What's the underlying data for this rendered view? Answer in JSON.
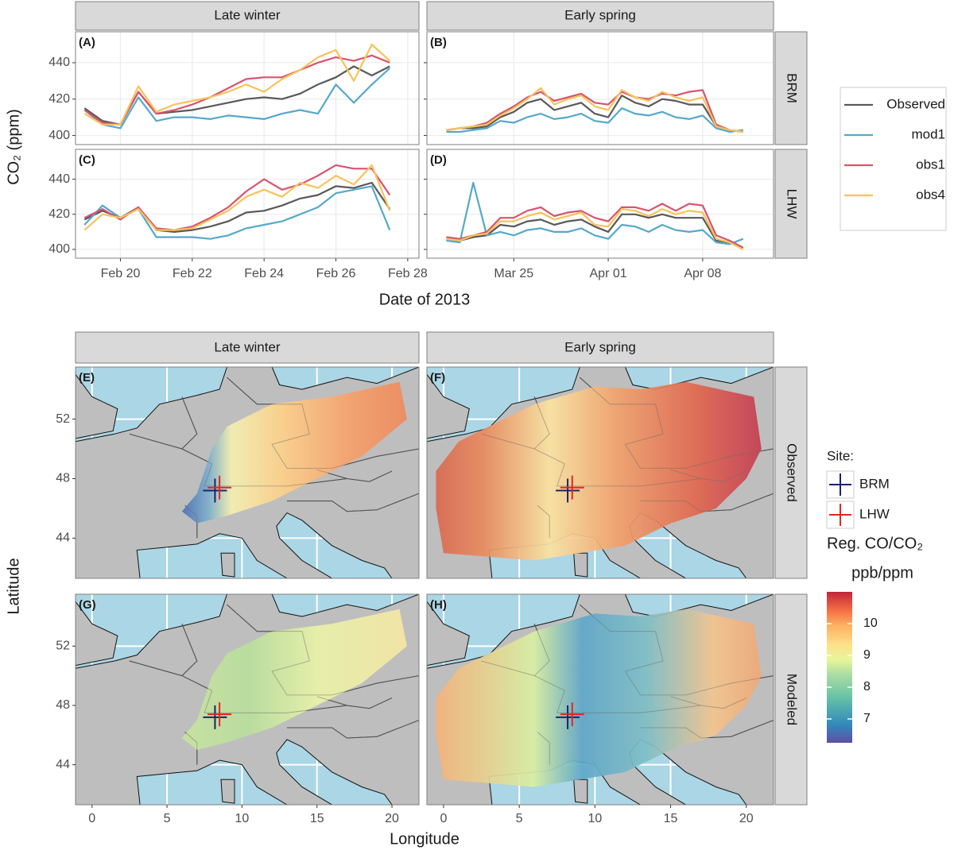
{
  "chart_data": [
    {
      "type": "line",
      "ylabel": "CO₂ (ppm)",
      "xlabel": "Date of 2013",
      "ylim": [
        395,
        457
      ],
      "yticks": [
        400,
        420,
        440
      ],
      "grid": true,
      "columns": [
        {
          "title": "Late winter",
          "xlim": [
            "2013-02-18T18:00",
            "2013-02-28T07:30"
          ],
          "xticks": [
            {
              "value": "2013-02-20T00:00",
              "label": "Feb 20"
            },
            {
              "value": "2013-02-22T00:00",
              "label": "Feb 22"
            },
            {
              "value": "2013-02-24T00:00",
              "label": "Feb 24"
            },
            {
              "value": "2013-02-26T00:00",
              "label": "Feb 26"
            },
            {
              "value": "2013-02-28T00:00",
              "label": "Feb 28"
            }
          ],
          "x": [
            "2013-02-19T00:00",
            "2013-02-19T12:00",
            "2013-02-20T00:00",
            "2013-02-20T12:00",
            "2013-02-21T00:00",
            "2013-02-21T12:00",
            "2013-02-22T00:00",
            "2013-02-22T12:00",
            "2013-02-23T00:00",
            "2013-02-23T12:00",
            "2013-02-24T00:00",
            "2013-02-24T12:00",
            "2013-02-25T00:00",
            "2013-02-25T12:00",
            "2013-02-26T00:00",
            "2013-02-26T12:00",
            "2013-02-27T00:00",
            "2013-02-27T12:00"
          ]
        },
        {
          "title": "Early spring",
          "xlim": [
            "2013-03-18T13:30",
            "2013-04-13T06:00"
          ],
          "xticks": [
            {
              "value": "2013-03-25T00:00",
              "label": "Mar 25"
            },
            {
              "value": "2013-04-01T00:00",
              "label": "Apr 01"
            },
            {
              "value": "2013-04-08T00:00",
              "label": "Apr 08"
            }
          ],
          "x": [
            "2013-03-20T00:00",
            "2013-03-21T00:00",
            "2013-03-22T00:00",
            "2013-03-23T00:00",
            "2013-03-24T00:00",
            "2013-03-25T00:00",
            "2013-03-26T00:00",
            "2013-03-27T00:00",
            "2013-03-28T00:00",
            "2013-03-29T00:00",
            "2013-03-30T00:00",
            "2013-03-31T00:00",
            "2013-04-01T00:00",
            "2013-04-02T00:00",
            "2013-04-03T00:00",
            "2013-04-04T00:00",
            "2013-04-05T00:00",
            "2013-04-06T00:00",
            "2013-04-07T00:00",
            "2013-04-08T00:00",
            "2013-04-09T00:00",
            "2013-04-10T00:00",
            "2013-04-11T00:00"
          ]
        }
      ],
      "rows": [
        "BRM",
        "LHW"
      ],
      "series": [
        {
          "name": "Observed",
          "color": "#595959"
        },
        {
          "name": "mod1",
          "color": "#56a8cb"
        },
        {
          "name": "obs1",
          "color": "#d9536d"
        },
        {
          "name": "obs4",
          "color": "#f7c35a"
        }
      ],
      "panels": [
        {
          "label": "(A)",
          "values": [
            [
              415,
              408,
              406,
              424,
              412,
              413,
              414,
              416,
              418,
              420,
              421,
              420,
              423,
              428,
              432,
              438,
              433,
              438
            ],
            [
              414,
              406,
              404,
              421,
              408,
              410,
              410,
              409,
              411,
              410,
              409,
              412,
              414,
              412,
              428,
              418,
              428,
              437
            ],
            [
              414,
              407,
              406,
              424,
              412,
              414,
              417,
              421,
              426,
              431,
              432,
              432,
              436,
              440,
              443,
              441,
              444,
              440
            ],
            [
              412,
              406,
              406,
              427,
              413,
              417,
              419,
              421,
              424,
              428,
              424,
              431,
              436,
              443,
              447,
              430,
              450,
              441
            ]
          ]
        },
        {
          "label": "(B)",
          "values": [
            [
              403,
              404,
              404,
              405,
              410,
              413,
              418,
              420,
              414,
              416,
              418,
              412,
              410,
              422,
              418,
              416,
              420,
              419,
              417,
              417,
              405,
              403,
              402
            ],
            [
              402,
              402,
              403,
              404,
              408,
              407,
              410,
              412,
              409,
              410,
              412,
              408,
              407,
              415,
              412,
              411,
              413,
              410,
              409,
              411,
              404,
              402,
              403
            ],
            [
              403,
              404,
              405,
              407,
              412,
              416,
              421,
              424,
              419,
              421,
              423,
              418,
              417,
              424,
              421,
              420,
              423,
              422,
              424,
              425,
              406,
              403,
              402
            ],
            [
              403,
              404,
              405,
              406,
              411,
              415,
              420,
              426,
              417,
              420,
              422,
              416,
              414,
              425,
              421,
              419,
              424,
              421,
              419,
              421,
              405,
              403,
              402
            ]
          ]
        },
        {
          "label": "(C)",
          "values": [
            [
              417,
              422,
              418,
              424,
              411,
              410,
              411,
              413,
              416,
              421,
              422,
              425,
              429,
              431,
              436,
              435,
              438,
              423
            ],
            [
              414,
              425,
              418,
              423,
              407,
              407,
              407,
              406,
              408,
              412,
              414,
              416,
              420,
              424,
              432,
              434,
              436,
              411
            ],
            [
              418,
              423,
              417,
              424,
              412,
              411,
              413,
              418,
              424,
              433,
              440,
              434,
              437,
              442,
              448,
              446,
              446,
              431
            ],
            [
              411,
              420,
              418,
              423,
              411,
              411,
              412,
              417,
              422,
              430,
              434,
              430,
              438,
              435,
              442,
              437,
              448,
              422
            ]
          ]
        },
        {
          "label": "(D)",
          "values": [
            [
              406,
              405,
              407,
              408,
              414,
              413,
              416,
              417,
              414,
              416,
              417,
              413,
              410,
              420,
              420,
              418,
              420,
              418,
              418,
              418,
              405,
              404,
              401
            ],
            [
              405,
              404,
              438,
              408,
              410,
              408,
              411,
              412,
              410,
              410,
              412,
              408,
              406,
              414,
              413,
              410,
              414,
              411,
              410,
              411,
              404,
              403,
              406
            ],
            [
              407,
              406,
              408,
              410,
              418,
              418,
              422,
              424,
              419,
              421,
              422,
              418,
              416,
              424,
              424,
              422,
              426,
              422,
              426,
              425,
              408,
              405,
              401
            ],
            [
              406,
              405,
              408,
              409,
              416,
              416,
              419,
              421,
              417,
              419,
              421,
              414,
              413,
              423,
              422,
              419,
              423,
              420,
              422,
              421,
              406,
              404,
              400
            ]
          ]
        }
      ]
    },
    {
      "type": "map",
      "xlabel": "Longitude",
      "ylabel": "Latitude",
      "columns": [
        "Late winter",
        "Early spring"
      ],
      "rows": [
        "Observed",
        "Modeled"
      ],
      "xlim": [
        -1.1,
        21.8
      ],
      "xticks": [
        0,
        5,
        10,
        15,
        20
      ],
      "ylim": [
        41.3,
        55.5
      ],
      "yticks": [
        44,
        48,
        52
      ],
      "panels": [
        {
          "label": "(E)"
        },
        {
          "label": "(F)"
        },
        {
          "label": "(G)"
        },
        {
          "label": "(H)"
        }
      ],
      "sites": {
        "title": "Site:",
        "items": [
          {
            "name": "BRM",
            "color": "#1c2170",
            "lon": 8.2,
            "lat": 47.2
          },
          {
            "name": "LHW",
            "color": "#e3261f",
            "lon": 8.5,
            "lat": 47.4
          }
        ]
      },
      "colorbar": {
        "title": "Reg. CO/CO₂",
        "unit": "ppb/ppm",
        "lim": [
          6.25,
          11
        ],
        "ticks": [
          7,
          8,
          9,
          10
        ]
      }
    }
  ]
}
